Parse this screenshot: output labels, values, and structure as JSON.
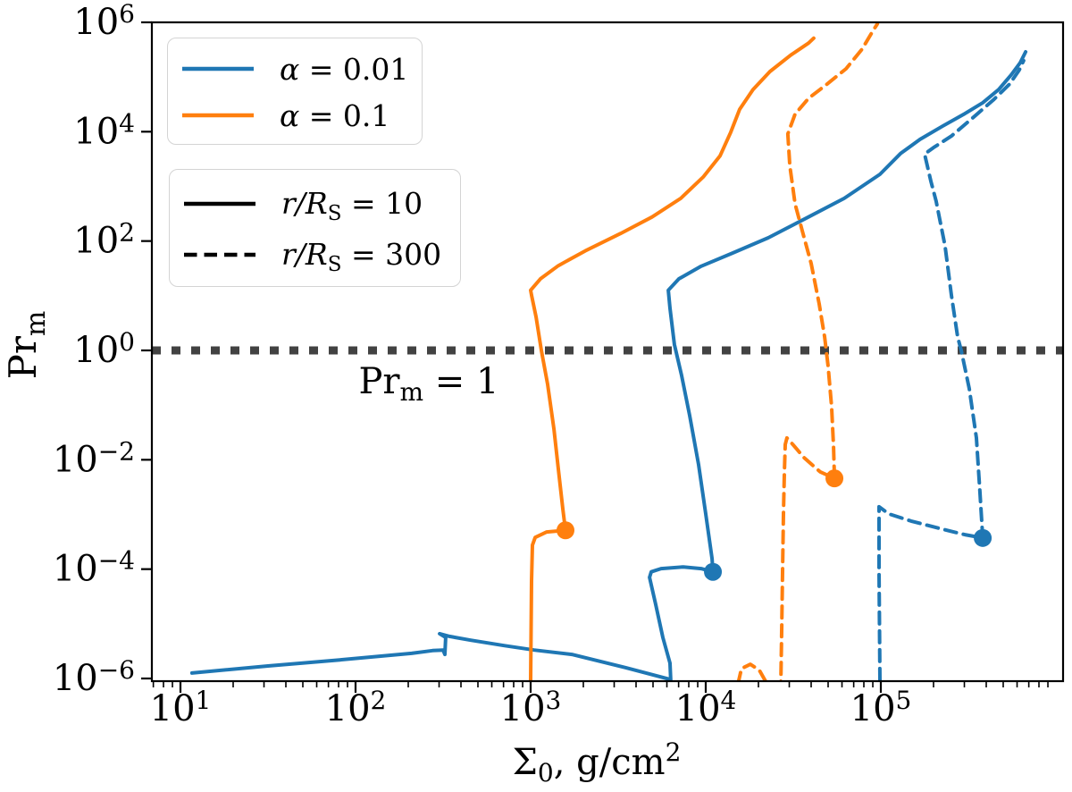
{
  "colors": {
    "blue": "#1f77b4",
    "orange": "#ff7f0e",
    "reference_gray": "#424242",
    "spine": "#000000"
  },
  "axes": {
    "tick_base": "10",
    "xlabel": {
      "sym": "Σ",
      "sub": "0",
      "rest": ", g/cm",
      "sup": "2"
    },
    "ylabel": {
      "main": "Pr",
      "sub": "m"
    }
  },
  "annotation": {
    "main": "Pr",
    "sub": "m",
    "rest": " = 1"
  },
  "legend_alpha": {
    "items": [
      {
        "name": "alpha-0.01",
        "color": "#1f77b4",
        "dash": "solid",
        "sym": "α",
        "sub": "",
        "rest": " = 0.01"
      },
      {
        "name": "alpha-0.1",
        "color": "#ff7f0e",
        "dash": "solid",
        "sym": "α",
        "sub": "",
        "rest": " = 0.1"
      }
    ]
  },
  "legend_radius": {
    "items": [
      {
        "name": "r-over-rs-10",
        "color": "#000000",
        "dash": "solid",
        "sym": "r/R",
        "sub": "S",
        "rest": " = 10"
      },
      {
        "name": "r-over-rs-300",
        "color": "#000000",
        "dash": "dashed",
        "sym": "r/R",
        "sub": "S",
        "rest": " = 300"
      }
    ]
  },
  "chart_data": {
    "type": "line",
    "title": "",
    "xlabel": "Sigma_0, g/cm^2",
    "ylabel": "Pr_m",
    "xscale": "log",
    "yscale": "log",
    "xlim_log": [
      0.837,
      6.041
    ],
    "ylim_log": [
      -6.05,
      6.0
    ],
    "x_tick_exponents": [
      1,
      2,
      3,
      4,
      5
    ],
    "y_tick_exponents": [
      6,
      4,
      2,
      0,
      -2,
      -4,
      -6
    ],
    "reference_line": {
      "y": 1,
      "label": "Pr_m = 1"
    },
    "series": [
      {
        "name": "alpha=0.01, r/R_S=10",
        "color": "#1f77b4",
        "style": "solid",
        "marker_log": [
          4.041,
          -4.05
        ],
        "points_log": [
          [
            1.066,
            -5.9
          ],
          [
            1.5,
            -5.77
          ],
          [
            1.91,
            -5.66
          ],
          [
            2.32,
            -5.54
          ],
          [
            2.44,
            -5.49
          ],
          [
            2.5,
            -5.48
          ],
          [
            2.51,
            -5.56
          ],
          [
            2.515,
            -5.25
          ],
          [
            2.48,
            -5.18
          ],
          [
            2.536,
            -5.23
          ],
          [
            2.658,
            -5.3
          ],
          [
            2.852,
            -5.4
          ],
          [
            3.02,
            -5.48
          ],
          [
            3.235,
            -5.56
          ],
          [
            3.541,
            -5.8
          ],
          [
            3.8,
            -6.02
          ],
          [
            3.796,
            -5.72
          ],
          [
            3.755,
            -5.25
          ],
          [
            3.714,
            -4.64
          ],
          [
            3.679,
            -4.15
          ],
          [
            3.689,
            -4.05
          ],
          [
            3.745,
            -3.99
          ],
          [
            3.872,
            -3.96
          ],
          [
            3.974,
            -3.99
          ],
          [
            4.041,
            -4.05
          ],
          [
            4.036,
            -3.81
          ],
          [
            4.0,
            -2.99
          ],
          [
            3.959,
            -2.09
          ],
          [
            3.908,
            -1.19
          ],
          [
            3.862,
            -0.46
          ],
          [
            3.821,
            0.11
          ],
          [
            3.796,
            0.77
          ],
          [
            3.786,
            1.1
          ],
          [
            3.847,
            1.31
          ],
          [
            3.974,
            1.54
          ],
          [
            4.153,
            1.78
          ],
          [
            4.357,
            2.06
          ],
          [
            4.587,
            2.44
          ],
          [
            4.791,
            2.78
          ],
          [
            4.995,
            3.22
          ],
          [
            5.112,
            3.6
          ],
          [
            5.224,
            3.86
          ],
          [
            5.352,
            4.1
          ],
          [
            5.48,
            4.33
          ],
          [
            5.582,
            4.53
          ],
          [
            5.673,
            4.77
          ],
          [
            5.745,
            5.04
          ],
          [
            5.796,
            5.26
          ],
          [
            5.827,
            5.46
          ]
        ]
      },
      {
        "name": "alpha=0.01, r/R_S=300",
        "color": "#1f77b4",
        "style": "dashed",
        "marker_log": [
          5.582,
          -3.43
        ],
        "points_log": [
          [
            4.995,
            -6.03
          ],
          [
            4.99,
            -4.05
          ],
          [
            4.99,
            -2.86
          ],
          [
            5.046,
            -2.99
          ],
          [
            5.173,
            -3.12
          ],
          [
            5.352,
            -3.27
          ],
          [
            5.48,
            -3.37
          ],
          [
            5.582,
            -3.43
          ],
          [
            5.566,
            -2.58
          ],
          [
            5.546,
            -1.6
          ],
          [
            5.505,
            -0.7
          ],
          [
            5.459,
            0.0
          ],
          [
            5.439,
            0.245
          ],
          [
            5.403,
            1.01
          ],
          [
            5.367,
            1.91
          ],
          [
            5.316,
            2.73
          ],
          [
            5.286,
            3.09
          ],
          [
            5.25,
            3.59
          ],
          [
            5.301,
            3.71
          ],
          [
            5.403,
            3.92
          ],
          [
            5.531,
            4.27
          ],
          [
            5.643,
            4.58
          ],
          [
            5.735,
            4.87
          ],
          [
            5.791,
            5.13
          ],
          [
            5.816,
            5.3
          ]
        ]
      },
      {
        "name": "alpha=0.1, r/R_S=10",
        "color": "#ff7f0e",
        "style": "solid",
        "marker_log": [
          3.199,
          -3.29
        ],
        "points_log": [
          [
            3.0,
            -6.03
          ],
          [
            3.005,
            -4.22
          ],
          [
            3.01,
            -3.56
          ],
          [
            3.026,
            -3.42
          ],
          [
            3.092,
            -3.32
          ],
          [
            3.199,
            -3.29
          ],
          [
            3.184,
            -2.91
          ],
          [
            3.158,
            -2.17
          ],
          [
            3.133,
            -1.44
          ],
          [
            3.097,
            -0.62
          ],
          [
            3.061,
            0.0
          ],
          [
            3.031,
            0.61
          ],
          [
            3.005,
            1.01
          ],
          [
            3.0,
            1.1
          ],
          [
            3.056,
            1.31
          ],
          [
            3.158,
            1.55
          ],
          [
            3.311,
            1.82
          ],
          [
            3.515,
            2.14
          ],
          [
            3.694,
            2.44
          ],
          [
            3.857,
            2.78
          ],
          [
            3.985,
            3.17
          ],
          [
            4.082,
            3.56
          ],
          [
            4.143,
            3.99
          ],
          [
            4.194,
            4.41
          ],
          [
            4.27,
            4.77
          ],
          [
            4.367,
            5.1
          ],
          [
            4.485,
            5.4
          ],
          [
            4.587,
            5.62
          ],
          [
            4.617,
            5.71
          ]
        ]
      },
      {
        "name": "alpha=0.1, r/R_S=300",
        "color": "#ff7f0e",
        "style": "dashed",
        "marker_log": [
          4.735,
          -2.34
        ],
        "points_log": [
          [
            4.184,
            -6.1
          ],
          [
            4.204,
            -5.82
          ],
          [
            4.255,
            -5.74
          ],
          [
            4.306,
            -5.85
          ],
          [
            4.342,
            -6.05
          ],
          [
            4.398,
            -6.15
          ],
          [
            4.429,
            -6.05
          ],
          [
            4.434,
            -5.04
          ],
          [
            4.439,
            -4.05
          ],
          [
            4.444,
            -2.99
          ],
          [
            4.449,
            -2.26
          ],
          [
            4.454,
            -1.72
          ],
          [
            4.464,
            -1.6
          ],
          [
            4.5,
            -1.73
          ],
          [
            4.561,
            -1.96
          ],
          [
            4.653,
            -2.22
          ],
          [
            4.735,
            -2.34
          ],
          [
            4.73,
            -1.77
          ],
          [
            4.719,
            -1.03
          ],
          [
            4.699,
            -0.29
          ],
          [
            4.679,
            0.245
          ],
          [
            4.648,
            0.85
          ],
          [
            4.602,
            1.59
          ],
          [
            4.551,
            2.19
          ],
          [
            4.51,
            2.68
          ],
          [
            4.48,
            3.38
          ],
          [
            4.469,
            3.96
          ],
          [
            4.51,
            4.32
          ],
          [
            4.587,
            4.61
          ],
          [
            4.689,
            4.86
          ],
          [
            4.801,
            5.15
          ],
          [
            4.893,
            5.51
          ],
          [
            4.954,
            5.84
          ],
          [
            4.98,
            5.97
          ]
        ]
      }
    ]
  }
}
